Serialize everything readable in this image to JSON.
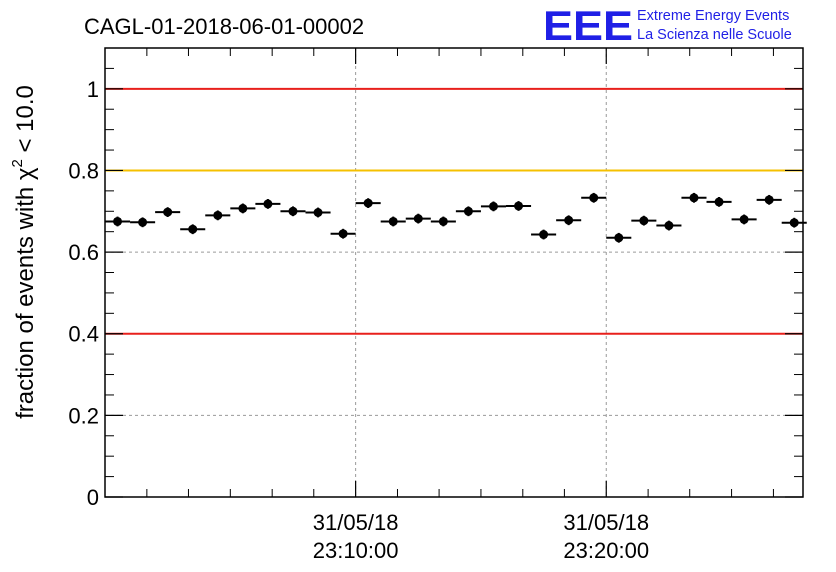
{
  "chart_data": {
    "type": "scatter",
    "title": "CAGL-01-2018-06-01-00002",
    "ylabel": {
      "prefix": "fraction of events with ",
      "chi": "χ",
      "sup": "2",
      "suffix": " < 10.0"
    },
    "xlabel": "",
    "ylim": [
      0,
      1.1
    ],
    "yticks": [
      0,
      0.2,
      0.4,
      0.6,
      0.8,
      1
    ],
    "ytick_labels": [
      "0",
      "0.2",
      "0.4",
      "0.6",
      "0.8",
      "1"
    ],
    "x_unit": "minutes after 31/05/18 23:00:00",
    "xlim": [
      0,
      27.85
    ],
    "major_xticks": [
      10,
      20
    ],
    "xtick_labels": [
      {
        "date": "31/05/18",
        "time": "23:10:00"
      },
      {
        "date": "31/05/18",
        "time": "23:20:00"
      }
    ],
    "minor_xticks": [
      1.67,
      3.33,
      5,
      6.67,
      8.33,
      11.67,
      13.33,
      15,
      16.67,
      18.33,
      21.67,
      23.33,
      25,
      26.67
    ],
    "grid": true,
    "bin_width_min": 1.0,
    "x": [
      0.5,
      1.5,
      2.5,
      3.5,
      4.5,
      5.5,
      6.5,
      7.5,
      8.5,
      9.5,
      10.5,
      11.5,
      12.5,
      13.5,
      14.5,
      15.5,
      16.5,
      17.5,
      18.5,
      19.5,
      20.5,
      21.5,
      22.5,
      23.5,
      24.5,
      25.5,
      26.5,
      27.5
    ],
    "y": [
      0.675,
      0.673,
      0.698,
      0.656,
      0.69,
      0.707,
      0.718,
      0.7,
      0.697,
      0.645,
      0.72,
      0.675,
      0.682,
      0.675,
      0.7,
      0.712,
      0.713,
      0.643,
      0.678,
      0.733,
      0.635,
      0.677,
      0.665,
      0.733,
      0.723,
      0.68,
      0.728,
      0.672
    ],
    "yerr": 0.012,
    "reference_lines": [
      {
        "y": 1.0,
        "color": "#e8201c"
      },
      {
        "y": 0.8,
        "color": "#f5c000"
      },
      {
        "y": 0.4,
        "color": "#e8201c"
      }
    ]
  },
  "logo": {
    "mark": "EEE",
    "line1": "Extreme Energy Events",
    "line2": "La Scienza nelle Scuole",
    "color": "#1f1fe6"
  }
}
